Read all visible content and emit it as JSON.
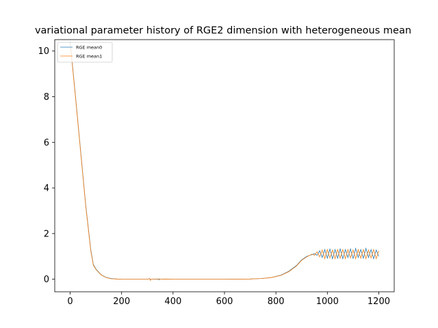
{
  "chart_data": {
    "type": "line",
    "title": "variational parameter history of RGE2 dimension with heterogeneous mean",
    "xlabel": "",
    "ylabel": "",
    "xlim": [
      -60,
      1260
    ],
    "ylim": [
      -0.55,
      10.5
    ],
    "xticks": [
      0,
      200,
      400,
      600,
      800,
      1000,
      1200
    ],
    "yticks": [
      0,
      2,
      4,
      6,
      8,
      10
    ],
    "grid": false,
    "legend": "top-left",
    "series": [
      {
        "name": "RGE mean0",
        "color": "#1f77b4",
        "points": [
          [
            0,
            10.4
          ],
          [
            20,
            8.1
          ],
          [
            40,
            5.7
          ],
          [
            60,
            3.3
          ],
          [
            80,
            1.3
          ],
          [
            90,
            0.65
          ],
          [
            100,
            0.45
          ],
          [
            120,
            0.2
          ],
          [
            140,
            0.08
          ],
          [
            160,
            0.03
          ],
          [
            180,
            0.01
          ],
          [
            200,
            0.0
          ],
          [
            300,
            0.0
          ],
          [
            310,
            0.02
          ],
          [
            312,
            -0.04
          ],
          [
            315,
            0.0
          ],
          [
            340,
            0.01
          ],
          [
            345,
            -0.02
          ],
          [
            350,
            0.0
          ],
          [
            400,
            0.0
          ],
          [
            500,
            0.0
          ],
          [
            600,
            0.0
          ],
          [
            700,
            0.01
          ],
          [
            740,
            0.03
          ],
          [
            780,
            0.07
          ],
          [
            820,
            0.18
          ],
          [
            850,
            0.35
          ],
          [
            880,
            0.6
          ],
          [
            900,
            0.85
          ],
          [
            920,
            1.0
          ],
          [
            940,
            1.08
          ],
          [
            950,
            1.12
          ],
          [
            960,
            1.05
          ],
          [
            970,
            1.25
          ],
          [
            980,
            0.95
          ],
          [
            990,
            1.3
          ],
          [
            1000,
            0.92
          ],
          [
            1010,
            1.32
          ],
          [
            1020,
            0.9
          ],
          [
            1030,
            1.3
          ],
          [
            1040,
            0.92
          ],
          [
            1050,
            1.33
          ],
          [
            1060,
            0.9
          ],
          [
            1070,
            1.3
          ],
          [
            1080,
            0.95
          ],
          [
            1090,
            1.33
          ],
          [
            1100,
            0.9
          ],
          [
            1110,
            1.35
          ],
          [
            1120,
            0.95
          ],
          [
            1130,
            1.3
          ],
          [
            1140,
            0.92
          ],
          [
            1150,
            1.35
          ],
          [
            1160,
            0.95
          ],
          [
            1170,
            1.3
          ],
          [
            1180,
            0.9
          ],
          [
            1190,
            1.28
          ],
          [
            1200,
            1.0
          ]
        ]
      },
      {
        "name": "RGE mean1",
        "color": "#ff7f0e",
        "points": [
          [
            0,
            10.35
          ],
          [
            20,
            8.05
          ],
          [
            40,
            5.65
          ],
          [
            60,
            3.25
          ],
          [
            80,
            1.25
          ],
          [
            90,
            0.62
          ],
          [
            100,
            0.43
          ],
          [
            120,
            0.19
          ],
          [
            140,
            0.07
          ],
          [
            160,
            0.02
          ],
          [
            180,
            0.01
          ],
          [
            200,
            0.0
          ],
          [
            300,
            0.0
          ],
          [
            310,
            0.03
          ],
          [
            312,
            -0.05
          ],
          [
            315,
            0.0
          ],
          [
            340,
            0.0
          ],
          [
            345,
            0.02
          ],
          [
            350,
            0.0
          ],
          [
            370,
            0.01
          ],
          [
            400,
            0.0
          ],
          [
            500,
            0.0
          ],
          [
            600,
            0.0
          ],
          [
            700,
            0.01
          ],
          [
            740,
            0.03
          ],
          [
            780,
            0.07
          ],
          [
            820,
            0.17
          ],
          [
            850,
            0.33
          ],
          [
            880,
            0.58
          ],
          [
            900,
            0.83
          ],
          [
            920,
            0.98
          ],
          [
            940,
            1.1
          ],
          [
            950,
            1.05
          ],
          [
            960,
            1.2
          ],
          [
            970,
            0.98
          ],
          [
            980,
            1.28
          ],
          [
            990,
            0.9
          ],
          [
            1000,
            1.3
          ],
          [
            1010,
            0.93
          ],
          [
            1020,
            1.28
          ],
          [
            1030,
            0.9
          ],
          [
            1040,
            1.3
          ],
          [
            1050,
            0.92
          ],
          [
            1060,
            1.3
          ],
          [
            1070,
            0.9
          ],
          [
            1080,
            1.3
          ],
          [
            1090,
            0.93
          ],
          [
            1100,
            1.28
          ],
          [
            1110,
            0.9
          ],
          [
            1120,
            1.3
          ],
          [
            1130,
            0.92
          ],
          [
            1140,
            1.3
          ],
          [
            1150,
            0.9
          ],
          [
            1160,
            1.28
          ],
          [
            1170,
            0.93
          ],
          [
            1180,
            1.3
          ],
          [
            1190,
            0.9
          ],
          [
            1200,
            1.25
          ]
        ]
      }
    ]
  }
}
